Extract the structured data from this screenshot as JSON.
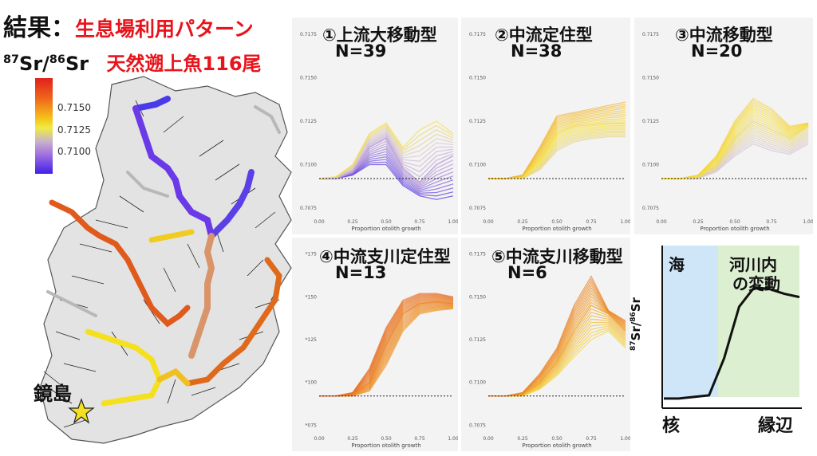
{
  "header": {
    "title_prefix": "結果：",
    "title_red": "生息場利用パターン",
    "ratio_label": "87Sr/86Sr",
    "subtitle_red": "天然遡上魚116尾"
  },
  "map": {
    "location_label": "鏡島",
    "legend_ticks": [
      "0.7150",
      "0.7125",
      "0.7100"
    ],
    "colors": {
      "high": "#e0201c",
      "mid": "#f5e020",
      "low": "#4020e8"
    }
  },
  "chart_data": [
    {
      "type": "line",
      "panel": "①上流大移動型",
      "n_label": "N=39",
      "xlabel": "Proportion otolith growth",
      "x_ticks": [
        "0.00",
        "0.25",
        "0.50",
        "0.75",
        "1.00"
      ],
      "y_ticks": [
        "0.7175",
        "0.7150",
        "0.7125",
        "0.7100",
        "0.7075"
      ],
      "ylim": [
        0.707,
        0.718
      ],
      "marine_baseline": 0.7092,
      "series_summary": [
        {
          "name": "upper",
          "values": [
            0.7092,
            0.7093,
            0.71,
            0.7118,
            0.7124,
            0.711,
            0.712,
            0.7125,
            0.7118
          ]
        },
        {
          "name": "middle",
          "values": [
            0.7092,
            0.7092,
            0.7096,
            0.711,
            0.7115,
            0.7098,
            0.709,
            0.71,
            0.7105
          ]
        },
        {
          "name": "lower",
          "values": [
            0.7092,
            0.7092,
            0.7094,
            0.71,
            0.71,
            0.7088,
            0.7082,
            0.708,
            0.7082
          ]
        }
      ]
    },
    {
      "type": "line",
      "panel": "②中流定住型",
      "n_label": "N=38",
      "xlabel": "Proportion otolith growth",
      "x_ticks": [
        "0.00",
        "0.25",
        "0.50",
        "0.75",
        "1.00"
      ],
      "y_ticks": [
        "0.7175",
        "0.7150",
        "0.7125",
        "0.7100",
        "0.7075"
      ],
      "ylim": [
        0.707,
        0.718
      ],
      "marine_baseline": 0.7092,
      "series_summary": [
        {
          "name": "upper",
          "values": [
            0.7092,
            0.7092,
            0.7094,
            0.711,
            0.7128,
            0.713,
            0.7132,
            0.7134,
            0.7136
          ]
        },
        {
          "name": "middle",
          "values": [
            0.7092,
            0.7092,
            0.7093,
            0.7103,
            0.7118,
            0.7122,
            0.7123,
            0.7124,
            0.7124
          ]
        },
        {
          "name": "lower",
          "values": [
            0.7092,
            0.7092,
            0.7092,
            0.7097,
            0.7108,
            0.7113,
            0.7115,
            0.7116,
            0.7116
          ]
        }
      ]
    },
    {
      "type": "line",
      "panel": "③中流移動型",
      "n_label": "N=20",
      "xlabel": "Proportion otolith growth",
      "x_ticks": [
        "0.00",
        "0.25",
        "0.50",
        "0.75",
        "1.00"
      ],
      "y_ticks": [
        "0.7175",
        "0.7150",
        "0.7125",
        "0.7100",
        "0.7075"
      ],
      "ylim": [
        0.707,
        0.718
      ],
      "marine_baseline": 0.7092,
      "series_summary": [
        {
          "name": "upper",
          "values": [
            0.7092,
            0.7092,
            0.7094,
            0.7105,
            0.7125,
            0.7138,
            0.7132,
            0.7122,
            0.7124
          ]
        },
        {
          "name": "middle",
          "values": [
            0.7092,
            0.7092,
            0.7093,
            0.71,
            0.7115,
            0.7125,
            0.712,
            0.7115,
            0.7122
          ]
        },
        {
          "name": "lower",
          "values": [
            0.7092,
            0.7092,
            0.7092,
            0.7096,
            0.7105,
            0.7112,
            0.7108,
            0.7106,
            0.7112
          ]
        }
      ]
    },
    {
      "type": "line",
      "panel": "④中流支川定住型",
      "n_label": "N=13",
      "xlabel": "Proportion otolith growth",
      "x_ticks": [
        "0.00",
        "0.25",
        "0.50",
        "0.75",
        "1.00"
      ],
      "y_ticks": [
        "*175",
        "*150",
        "*125",
        "*100",
        "*075"
      ],
      "ylim": [
        0.707,
        0.718
      ],
      "marine_baseline": 0.7092,
      "series_summary": [
        {
          "name": "upper",
          "values": [
            0.7092,
            0.7092,
            0.7094,
            0.7108,
            0.7132,
            0.7148,
            0.7152,
            0.7152,
            0.715
          ]
        },
        {
          "name": "middle",
          "values": [
            0.7092,
            0.7092,
            0.7093,
            0.71,
            0.7122,
            0.714,
            0.7146,
            0.7147,
            0.7146
          ]
        },
        {
          "name": "lower",
          "values": [
            0.7092,
            0.7092,
            0.7092,
            0.7095,
            0.711,
            0.713,
            0.714,
            0.7142,
            0.7143
          ]
        }
      ]
    },
    {
      "type": "line",
      "panel": "⑤中流支川移動型",
      "n_label": "N=6",
      "xlabel": "Proportion otolith growth",
      "x_ticks": [
        "0.00",
        "0.25",
        "0.50",
        "0.75",
        "1.00"
      ],
      "y_ticks": [
        "0.7175",
        "0.7150",
        "0.7125",
        "0.7100",
        "0.7075"
      ],
      "ylim": [
        0.707,
        0.718
      ],
      "marine_baseline": 0.7092,
      "series_summary": [
        {
          "name": "upper",
          "values": [
            0.7092,
            0.7092,
            0.7094,
            0.7105,
            0.712,
            0.7145,
            0.7162,
            0.7142,
            0.7136
          ]
        },
        {
          "name": "middle",
          "values": [
            0.7092,
            0.7092,
            0.7093,
            0.71,
            0.7112,
            0.713,
            0.7145,
            0.714,
            0.713
          ]
        },
        {
          "name": "lower",
          "values": [
            0.7092,
            0.7092,
            0.7092,
            0.7096,
            0.7104,
            0.7115,
            0.7125,
            0.713,
            0.712
          ]
        }
      ]
    }
  ],
  "concept": {
    "sea_label": "海",
    "river_label_1": "河川内",
    "river_label_2": "の変動",
    "ylabel": "87Sr/86Sr",
    "x_start": "核",
    "x_end": "縁辺",
    "curve_shape": [
      0.05,
      0.05,
      0.06,
      0.07,
      0.3,
      0.62,
      0.74,
      0.73,
      0.7,
      0.68
    ]
  }
}
